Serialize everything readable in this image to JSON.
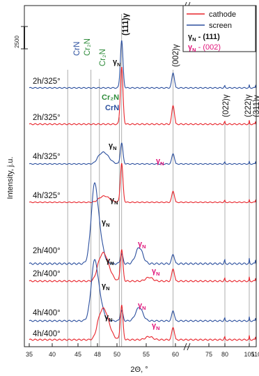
{
  "chart_data": {
    "type": "line",
    "title": "",
    "xlabel": "2Θ, °",
    "ylabel": "Intensity, j.u.",
    "grid": false,
    "x_ticks": [
      "35",
      "40",
      "45",
      "48",
      "50",
      "55",
      "60",
      "75",
      "80",
      "105",
      "110"
    ],
    "x_break_after": "60",
    "y_tick_label": "2500",
    "legend": {
      "position": "top-right",
      "entries": [
        {
          "label": "cathode",
          "color": "#e8232a"
        },
        {
          "label": "screen",
          "color": "#2b4f9e"
        }
      ],
      "notes": [
        {
          "symbol": "γ",
          "sub": "N",
          "text": " - (111)",
          "color": "#111111"
        },
        {
          "symbol": "γ",
          "sub": "N",
          "text": " - (002)",
          "color": "#e0157a"
        }
      ]
    },
    "reference_lines": [
      "CrN",
      "Cr₂N",
      "Cr₂N",
      "CrN",
      "(111)γ",
      "(002)γ",
      "(022)γ",
      "(222)γ",
      "(311)γ"
    ],
    "series": [
      {
        "name": "2h/325°",
        "color": "#2b4f9e",
        "trace": "screen",
        "peaks": [
          {
            "x": 50.8,
            "h": 1.0
          },
          {
            "x": 59.6,
            "h": 0.32
          }
        ]
      },
      {
        "name": "2h/325°",
        "color": "#e8232a",
        "trace": "cathode",
        "peaks": [
          {
            "x": 50.8,
            "h": 1.0
          },
          {
            "x": 59.6,
            "h": 0.33
          }
        ]
      },
      {
        "name": "4h/325°",
        "color": "#2b4f9e",
        "trace": "screen",
        "peaks": [
          {
            "x": 48.6,
            "h": 0.28
          },
          {
            "x": 50.8,
            "h": 0.5
          },
          {
            "x": 59.6,
            "h": 0.25
          }
        ]
      },
      {
        "name": "4h/325°",
        "color": "#e8232a",
        "trace": "cathode",
        "peaks": [
          {
            "x": 48.7,
            "h": 0.15
          },
          {
            "x": 50.8,
            "h": 0.93
          },
          {
            "x": 59.6,
            "h": 0.27
          }
        ]
      },
      {
        "name": "2h/400°",
        "color": "#2b4f9e",
        "trace": "screen",
        "peaks": [
          {
            "x": 47.6,
            "h": 1.0
          },
          {
            "x": 50.8,
            "h": 0.12
          },
          {
            "x": 53.8,
            "h": 0.2
          },
          {
            "x": 59.6,
            "h": 0.12
          }
        ]
      },
      {
        "name": "2h/400°",
        "color": "#e8232a",
        "trace": "cathode",
        "peaks": [
          {
            "x": 48.6,
            "h": 0.45
          },
          {
            "x": 50.8,
            "h": 0.5
          },
          {
            "x": 55.5,
            "h": 0.06
          },
          {
            "x": 59.6,
            "h": 0.2
          }
        ]
      },
      {
        "name": "4h/400°",
        "color": "#2b4f9e",
        "trace": "screen",
        "peaks": [
          {
            "x": 47.6,
            "h": 1.0
          },
          {
            "x": 50.8,
            "h": 0.17
          },
          {
            "x": 53.8,
            "h": 0.22
          },
          {
            "x": 59.6,
            "h": 0.17
          }
        ]
      },
      {
        "name": "4h/400°",
        "color": "#e8232a",
        "trace": "cathode",
        "peaks": [
          {
            "x": 48.6,
            "h": 0.5
          },
          {
            "x": 50.8,
            "h": 0.55
          },
          {
            "x": 55.5,
            "h": 0.05
          },
          {
            "x": 59.6,
            "h": 0.2
          }
        ]
      }
    ],
    "annotations": [
      {
        "symbol": "γ",
        "sub": "N",
        "text": "",
        "color": "#111111"
      },
      {
        "symbol": "Cr₂N",
        "sub": "",
        "text": "",
        "color": "#2e8b3a"
      },
      {
        "symbol": "CrN",
        "sub": "",
        "text": "",
        "color": "#2b4f9e"
      },
      {
        "symbol": "γ",
        "sub": "N",
        "text": "",
        "color": "#111111"
      },
      {
        "symbol": "γ",
        "sub": "N",
        "text": "",
        "color": "#e0157a"
      },
      {
        "symbol": "γ",
        "sub": "N",
        "text": "",
        "color": "#111111"
      },
      {
        "symbol": "γ",
        "sub": "N",
        "text": "",
        "color": "#111111"
      },
      {
        "symbol": "γ",
        "sub": "N",
        "text": "",
        "color": "#e0157a"
      },
      {
        "symbol": "γ",
        "sub": "N",
        "text": "",
        "color": "#111111"
      },
      {
        "symbol": "γ",
        "sub": "N",
        "text": "",
        "color": "#e0157a"
      },
      {
        "symbol": "γ",
        "sub": "N",
        "text": "",
        "color": "#111111"
      },
      {
        "symbol": "γ",
        "sub": "N",
        "text": "",
        "color": "#e0157a"
      },
      {
        "symbol": "γ",
        "sub": "N",
        "text": "",
        "color": "#111111"
      },
      {
        "symbol": "γ",
        "sub": "N",
        "text": "",
        "color": "#e0157a"
      }
    ]
  }
}
